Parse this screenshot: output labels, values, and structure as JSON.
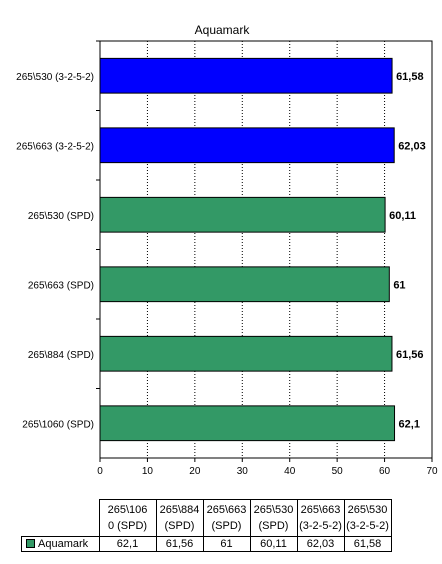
{
  "chart_data": {
    "type": "bar",
    "orientation": "horizontal",
    "title": "Aquamark",
    "categories": [
      "265\\530 (3-2-5-2)",
      "265\\663 (3-2-5-2)",
      "265\\530 (SPD)",
      "265\\663 (SPD)",
      "265\\884 (SPD)",
      "265\\1060 (SPD)"
    ],
    "values": [
      61.58,
      62.03,
      60.11,
      61,
      61.56,
      62.1
    ],
    "value_labels": [
      "61,58",
      "62,03",
      "60,11",
      "61",
      "61,56",
      "62,1"
    ],
    "bar_colors": [
      "#0000ff",
      "#0000ff",
      "#339966",
      "#339966",
      "#339966",
      "#339966"
    ],
    "xlim": [
      0,
      70
    ],
    "xticks": [
      0,
      10,
      20,
      30,
      40,
      50,
      60,
      70
    ],
    "grid": true,
    "series": [
      {
        "name": "Aquamark",
        "color": "#339966"
      }
    ],
    "table": {
      "headers": [
        [
          "265\\106",
          "0 (SPD)"
        ],
        [
          "265\\884",
          "(SPD)"
        ],
        [
          "265\\663",
          "(SPD)"
        ],
        [
          "265\\530",
          "(SPD)"
        ],
        [
          "265\\663",
          "(3-2-5-2)"
        ],
        [
          "265\\530",
          "(3-2-5-2)"
        ]
      ],
      "row_label": "Aquamark",
      "row_values": [
        "62,1",
        "61,56",
        "61",
        "60,11",
        "62,03",
        "61,58"
      ]
    }
  }
}
